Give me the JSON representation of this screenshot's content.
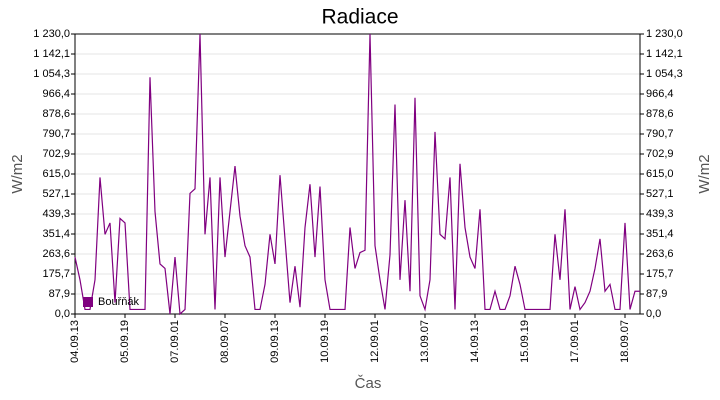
{
  "chart_data": {
    "type": "line",
    "title": "Radiace",
    "x_label": "Čas",
    "y_label": "W/m2",
    "categories": [
      "04.09.13",
      null,
      null,
      null,
      null,
      null,
      null,
      null,
      null,
      null,
      "05.09.19",
      null,
      null,
      null,
      null,
      null,
      null,
      null,
      null,
      null,
      "07.09.01",
      null,
      null,
      null,
      null,
      null,
      null,
      null,
      null,
      null,
      "08.09.07",
      null,
      null,
      null,
      null,
      null,
      null,
      null,
      null,
      null,
      "09.09.13",
      null,
      null,
      null,
      null,
      null,
      null,
      null,
      null,
      null,
      "10.09.19",
      null,
      null,
      null,
      null,
      null,
      null,
      null,
      null,
      null,
      "12.09.01",
      null,
      null,
      null,
      null,
      null,
      null,
      null,
      null,
      null,
      "13.09.07",
      null,
      null,
      null,
      null,
      null,
      null,
      null,
      null,
      null,
      "14.09.13",
      null,
      null,
      null,
      null,
      null,
      null,
      null,
      null,
      null,
      "15.09.19",
      null,
      null,
      null,
      null,
      null,
      null,
      null,
      null,
      null,
      "17.09.01",
      null,
      null,
      null,
      null,
      null,
      null,
      null,
      null,
      null,
      "18.09.07",
      null,
      null,
      null
    ],
    "series": [
      {
        "name": "Bouřňák",
        "color": "#800080",
        "values": [
          250,
          150,
          20,
          20,
          150,
          600,
          350,
          400,
          50,
          420,
          400,
          20,
          20,
          20,
          20,
          1040,
          450,
          220,
          200,
          0,
          250,
          0,
          20,
          530,
          550,
          1230,
          350,
          600,
          20,
          600,
          250,
          450,
          650,
          430,
          300,
          250,
          20,
          20,
          130,
          350,
          220,
          610,
          330,
          50,
          210,
          30,
          380,
          570,
          250,
          560,
          150,
          20,
          20,
          20,
          20,
          380,
          200,
          270,
          280,
          1230,
          300,
          150,
          20,
          260,
          920,
          150,
          500,
          100,
          950,
          80,
          20,
          150,
          800,
          350,
          330,
          600,
          20,
          660,
          380,
          250,
          200,
          460,
          20,
          20,
          100,
          20,
          20,
          80,
          210,
          130,
          20,
          20,
          20,
          20,
          20,
          20,
          350,
          150,
          460,
          20,
          120,
          20,
          50,
          100,
          200,
          330,
          100,
          130,
          20,
          20,
          400,
          20,
          100,
          100
        ]
      }
    ],
    "ylim": [
      0,
      1230
    ],
    "yticks": [
      {
        "value": 0,
        "label": "0,0"
      },
      {
        "value": 87.9,
        "label": "87,9"
      },
      {
        "value": 175.7,
        "label": "175,7"
      },
      {
        "value": 263.6,
        "label": "263,6"
      },
      {
        "value": 351.4,
        "label": "351,4"
      },
      {
        "value": 439.3,
        "label": "439,3"
      },
      {
        "value": 527.1,
        "label": "527,1"
      },
      {
        "value": 615,
        "label": "615,0"
      },
      {
        "value": 702.9,
        "label": "702,9"
      },
      {
        "value": 790.7,
        "label": "790,7"
      },
      {
        "value": 878.6,
        "label": "878,6"
      },
      {
        "value": 966.4,
        "label": "966,4"
      },
      {
        "value": 1054.3,
        "label": "1 054,3"
      },
      {
        "value": 1142.1,
        "label": "1 142,1"
      },
      {
        "value": 1230,
        "label": "1 230,0"
      }
    ],
    "grid": true,
    "legend": "lower left"
  }
}
